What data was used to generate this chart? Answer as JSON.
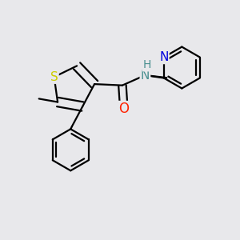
{
  "background_color": "#e8e8eb",
  "atom_colors": {
    "S": "#cccc00",
    "N_amide": "#4a9090",
    "N_pyridine": "#0000dd",
    "O": "#ff2200",
    "C": "#000000",
    "H": "#4a9090"
  },
  "bond_color": "#000000",
  "bond_width": 1.6,
  "figsize": [
    3.0,
    3.0
  ],
  "dpi": 100
}
